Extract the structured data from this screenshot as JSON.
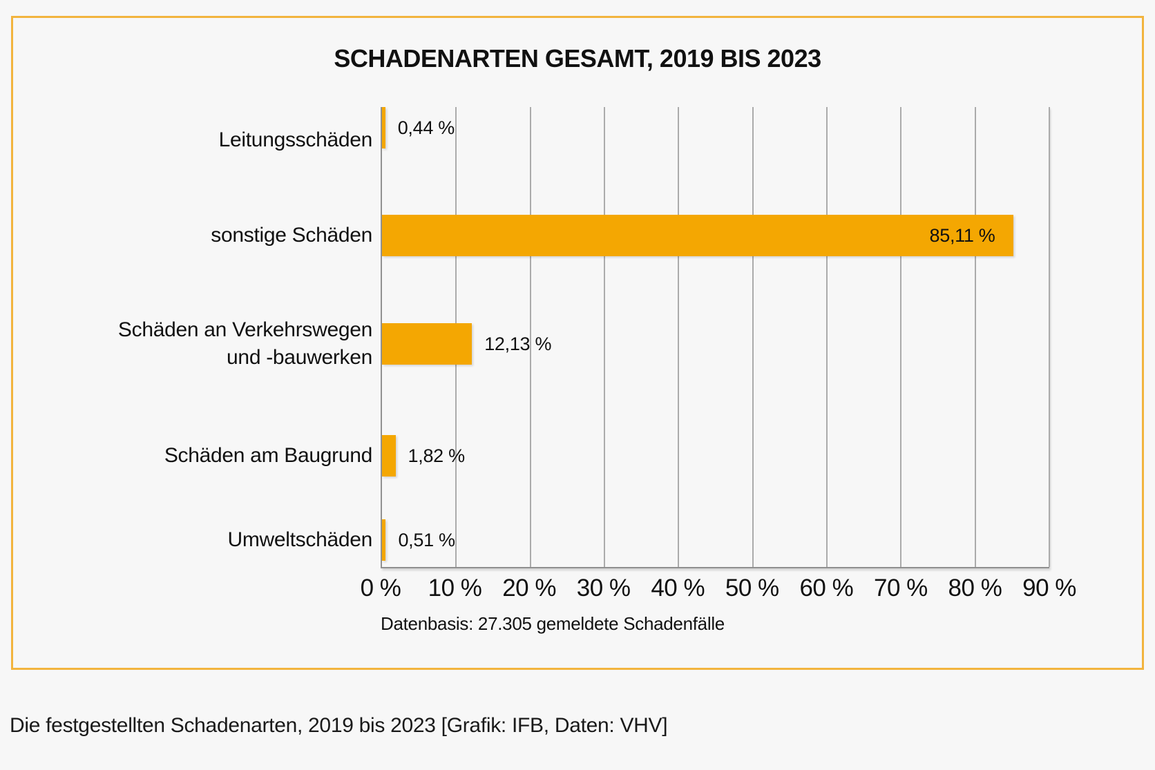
{
  "chart_data": {
    "type": "bar",
    "orientation": "horizontal",
    "title": "SCHADENARTEN GESAMT, 2019 BIS 2023",
    "categories": [
      "Leitungsschäden",
      "sonstige Schäden",
      "Schäden an Verkehrswegen und -bauwerken",
      "Schäden am Baugrund",
      "Umweltschäden"
    ],
    "values": [
      85.11,
      12.13,
      1.82,
      0.51,
      0.44
    ],
    "value_labels": [
      "85,11 %",
      "12,13 %",
      "1,82 %",
      "0,51 %",
      "0,44 %"
    ],
    "xlim": [
      0,
      90
    ],
    "x_ticks": [
      "0 %",
      "10 %",
      "20 %",
      "30 %",
      "40 %",
      "50 %",
      "60 %",
      "70 %",
      "80 %",
      "90 %"
    ],
    "grid": "vertical-gridlines-on",
    "legend": "none",
    "xlabel": "",
    "ylabel": "",
    "source_note": "Datenbasis: 27.305 gemeldete Schadenfälle"
  },
  "caption": "Die festgestellten Schadenarten, 2019 bis 2023 [Grafik: IFB, Daten: VHV]",
  "colors": {
    "bar": "#f4a702",
    "panel_border": "#f2b43e",
    "background": "#f7f7f7",
    "gridline": "#ababab",
    "axis": "#919191",
    "text": "#111111"
  }
}
